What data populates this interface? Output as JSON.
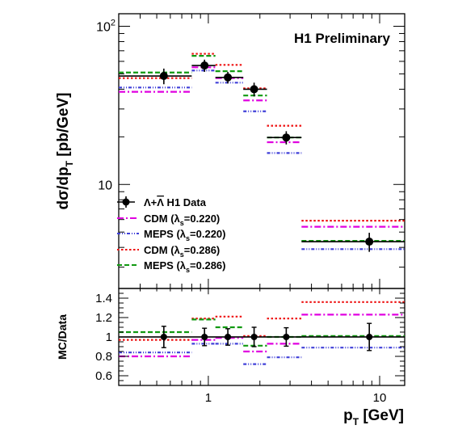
{
  "chart_data": [
    {
      "type": "scatter",
      "label": "H1 Preliminary",
      "ylabel": {
        "main": "dσ/dp",
        "sub": "T",
        "unit": " [pb/GeV]"
      },
      "xscale": "log",
      "yscale": "log",
      "xlim": [
        0.3,
        14
      ],
      "ylim": [
        2.2,
        120
      ],
      "y_ticks": [
        {
          "value": 10,
          "label": "10"
        },
        {
          "value": 100,
          "label": "10",
          "sup": "2"
        }
      ],
      "legend_position": "center-left",
      "bins": [
        [
          0.3,
          0.8
        ],
        [
          0.8,
          1.1
        ],
        [
          1.1,
          1.6
        ],
        [
          1.6,
          2.2
        ],
        [
          2.2,
          3.5
        ],
        [
          3.5,
          14
        ]
      ],
      "data": {
        "name": "Λ+Λ̄ H1 Data",
        "legend_main": "Λ+",
        "legend_bar": "Λ",
        "legend_tail": " H1 Data",
        "x": [
          0.55,
          0.95,
          1.3,
          1.85,
          2.85,
          8.7
        ],
        "y": [
          48.5,
          56.5,
          47.5,
          40.0,
          19.8,
          4.35
        ],
        "yerr": [
          5.5,
          5.0,
          4.0,
          4.0,
          1.9,
          0.6
        ]
      },
      "series": [
        {
          "name": "CDM (λs=0.220)",
          "label_main": "CDM (λ",
          "label_sub": "s",
          "label_tail": "=0.220)",
          "color": "#e000e0",
          "dash": "8,3,2,3",
          "values": [
            38.5,
            55.0,
            47.0,
            34.0,
            18.5,
            5.4
          ]
        },
        {
          "name": "MEPS (λs=0.220)",
          "label_main": "MEPS (λ",
          "label_sub": "s",
          "label_tail": "=0.220)",
          "color": "#4040d8",
          "dash": "4,2,1,2,1,2",
          "values": [
            41.0,
            52.5,
            44.0,
            29.0,
            15.8,
            3.9
          ]
        },
        {
          "name": "CDM (λs=0.286)",
          "label_main": "CDM (λ",
          "label_sub": "s",
          "label_tail": "=0.286)",
          "color": "#ee1111",
          "dash": "2.5,2.5",
          "values": [
            47.0,
            67.0,
            57.0,
            40.5,
            23.5,
            5.9
          ]
        },
        {
          "name": "MEPS (λs=0.286)",
          "label_main": "MEPS (λ",
          "label_sub": "s",
          "label_tail": "=0.286)",
          "color": "#119911",
          "dash": "6,3",
          "values": [
            51.0,
            65.0,
            52.0,
            36.5,
            19.8,
            4.4
          ]
        }
      ]
    },
    {
      "type": "scatter",
      "ylabel": "MC/Data",
      "xlabel": {
        "main": "p",
        "sub": "T",
        "unit": " [GeV]"
      },
      "xscale": "log",
      "xlim": [
        0.3,
        14
      ],
      "ylim": [
        0.5,
        1.5
      ],
      "y_ticks": [
        "0.6",
        "0.8",
        "1",
        "1.2",
        "1.4"
      ],
      "x_ticks": [
        "1",
        "10"
      ],
      "reference_line": 1.0,
      "data": {
        "x": [
          0.55,
          0.95,
          1.3,
          1.85,
          2.85,
          8.7
        ],
        "y": [
          1.0,
          1.0,
          1.0,
          1.0,
          1.0,
          1.0
        ],
        "yerr": [
          0.11,
          0.09,
          0.085,
          0.1,
          0.095,
          0.14
        ]
      },
      "series": [
        {
          "name": "CDM (λs=0.220)",
          "color": "#e000e0",
          "dash": "8,3,2,3",
          "values": [
            0.8,
            0.97,
            0.99,
            0.85,
            0.93,
            1.23
          ]
        },
        {
          "name": "MEPS (λs=0.220)",
          "color": "#4040d8",
          "dash": "4,2,1,2,1,2",
          "values": [
            0.84,
            0.93,
            0.93,
            0.72,
            0.79,
            0.89
          ]
        },
        {
          "name": "CDM (λs=0.286)",
          "color": "#ee1111",
          "dash": "2.5,2.5",
          "values": [
            0.97,
            1.19,
            1.21,
            1.01,
            1.19,
            1.36
          ]
        },
        {
          "name": "MEPS (λs=0.286)",
          "color": "#119911",
          "dash": "6,3",
          "values": [
            1.05,
            1.18,
            1.1,
            0.91,
            1.0,
            1.01
          ]
        }
      ]
    }
  ]
}
